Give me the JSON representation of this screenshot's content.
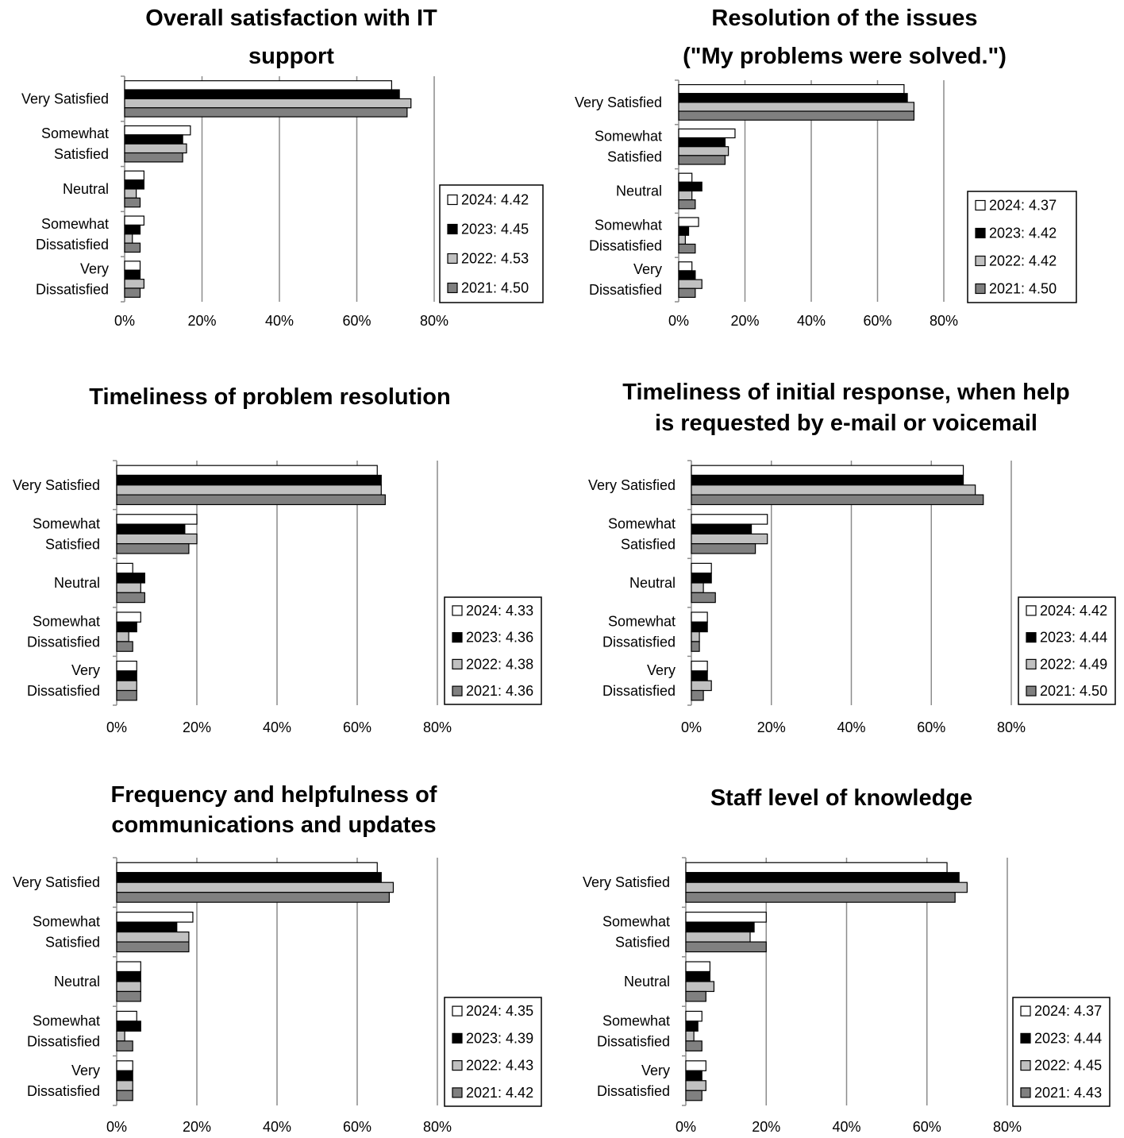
{
  "legend_years": [
    "2024",
    "2023",
    "2022",
    "2021"
  ],
  "series_colors": [
    "#ffffff",
    "#000000",
    "#c0c0c0",
    "#808080"
  ],
  "chart_data": [
    {
      "type": "bar",
      "orientation": "horizontal",
      "title": [
        "Overall satisfaction with IT",
        "support"
      ],
      "categories": [
        [
          "Very Satisfied"
        ],
        [
          "Somewhat",
          "Satisfied"
        ],
        [
          "Neutral"
        ],
        [
          "Somewhat",
          "Dissatisfied"
        ],
        [
          "Very",
          "Dissatisfied"
        ]
      ],
      "series": [
        {
          "name": "2024: 4.42",
          "values": [
            69,
            17,
            5,
            5,
            4
          ]
        },
        {
          "name": "2023: 4.45",
          "values": [
            71,
            15,
            5,
            4,
            4
          ]
        },
        {
          "name": "2022: 4.53",
          "values": [
            74,
            16,
            3,
            2,
            5
          ]
        },
        {
          "name": "2021: 4.50",
          "values": [
            73,
            15,
            4,
            4,
            4
          ]
        }
      ],
      "xlim": [
        0,
        80
      ],
      "xticks": [
        "0%",
        "20%",
        "40%",
        "60%",
        "80%"
      ],
      "legend": "right"
    },
    {
      "type": "bar",
      "orientation": "horizontal",
      "title": [
        "Resolution of the issues",
        "(\"My problems were solved.\")"
      ],
      "categories": [
        [
          "Very Satisfied"
        ],
        [
          "Somewhat",
          "Satisfied"
        ],
        [
          "Neutral"
        ],
        [
          "Somewhat",
          "Dissatisfied"
        ],
        [
          "Very",
          "Dissatisfied"
        ]
      ],
      "series": [
        {
          "name": "2024: 4.37",
          "values": [
            68,
            17,
            4,
            6,
            4
          ]
        },
        {
          "name": "2023: 4.42",
          "values": [
            69,
            14,
            7,
            3,
            5
          ]
        },
        {
          "name": "2022: 4.42",
          "values": [
            71,
            15,
            4,
            2,
            7
          ]
        },
        {
          "name": "2021: 4.50",
          "values": [
            71,
            14,
            5,
            5,
            5
          ]
        }
      ],
      "xlim": [
        0,
        80
      ],
      "xticks": [
        "0%",
        "20%",
        "40%",
        "60%",
        "80%"
      ],
      "legend": "right"
    },
    {
      "type": "bar",
      "orientation": "horizontal",
      "title": [
        "Timeliness of problem resolution"
      ],
      "categories": [
        [
          "Very Satisfied"
        ],
        [
          "Somewhat",
          "Satisfied"
        ],
        [
          "Neutral"
        ],
        [
          "Somewhat",
          "Dissatisfied"
        ],
        [
          "Very",
          "Dissatisfied"
        ]
      ],
      "series": [
        {
          "name": "2024: 4.33",
          "values": [
            65,
            20,
            4,
            6,
            5
          ]
        },
        {
          "name": "2023: 4.36",
          "values": [
            66,
            17,
            7,
            5,
            5
          ]
        },
        {
          "name": "2022: 4.38",
          "values": [
            66,
            20,
            6,
            3,
            5
          ]
        },
        {
          "name": "2021: 4.36",
          "values": [
            67,
            18,
            7,
            4,
            5
          ]
        }
      ],
      "xlim": [
        0,
        80
      ],
      "xticks": [
        "0%",
        "20%",
        "40%",
        "60%",
        "80%"
      ],
      "legend": "right"
    },
    {
      "type": "bar",
      "orientation": "horizontal",
      "title": [
        "Timeliness of initial response, when help",
        "is requested by e-mail or voicemail"
      ],
      "categories": [
        [
          "Very Satisfied"
        ],
        [
          "Somewhat",
          "Satisfied"
        ],
        [
          "Neutral"
        ],
        [
          "Somewhat",
          "Dissatisfied"
        ],
        [
          "Very",
          "Dissatisfied"
        ]
      ],
      "series": [
        {
          "name": "2024: 4.42",
          "values": [
            68,
            19,
            5,
            4,
            4
          ]
        },
        {
          "name": "2023: 4.44",
          "values": [
            68,
            15,
            5,
            4,
            4
          ]
        },
        {
          "name": "2022: 4.49",
          "values": [
            71,
            19,
            3,
            2,
            5
          ]
        },
        {
          "name": "2021: 4.50",
          "values": [
            73,
            16,
            6,
            2,
            3
          ]
        }
      ],
      "xlim": [
        0,
        80
      ],
      "xticks": [
        "0%",
        "20%",
        "40%",
        "60%",
        "80%"
      ],
      "legend": "right"
    },
    {
      "type": "bar",
      "orientation": "horizontal",
      "title": [
        "Frequency and helpfulness of",
        "communications and updates"
      ],
      "categories": [
        [
          "Very Satisfied"
        ],
        [
          "Somewhat",
          "Satisfied"
        ],
        [
          "Neutral"
        ],
        [
          "Somewhat",
          "Dissatisfied"
        ],
        [
          "Very",
          "Dissatisfied"
        ]
      ],
      "series": [
        {
          "name": "2024: 4.35",
          "values": [
            65,
            19,
            6,
            5,
            4
          ]
        },
        {
          "name": "2023: 4.39",
          "values": [
            66,
            15,
            6,
            6,
            4
          ]
        },
        {
          "name": "2022: 4.43",
          "values": [
            69,
            18,
            6,
            2,
            4
          ]
        },
        {
          "name": "2021: 4.42",
          "values": [
            68,
            18,
            6,
            4,
            4
          ]
        }
      ],
      "xlim": [
        0,
        80
      ],
      "xticks": [
        "0%",
        "20%",
        "40%",
        "60%",
        "80%"
      ],
      "legend": "right"
    },
    {
      "type": "bar",
      "orientation": "horizontal",
      "title": [
        "Staff level of knowledge"
      ],
      "categories": [
        [
          "Very Satisfied"
        ],
        [
          "Somewhat",
          "Satisfied"
        ],
        [
          "Neutral"
        ],
        [
          "Somewhat",
          "Dissatisfied"
        ],
        [
          "Very",
          "Dissatisfied"
        ]
      ],
      "series": [
        {
          "name": "2024: 4.37",
          "values": [
            65,
            20,
            6,
            4,
            5
          ]
        },
        {
          "name": "2023: 4.44",
          "values": [
            68,
            17,
            6,
            3,
            4
          ]
        },
        {
          "name": "2022: 4.45",
          "values": [
            70,
            16,
            7,
            2,
            5
          ]
        },
        {
          "name": "2021: 4.43",
          "values": [
            67,
            20,
            5,
            4,
            4
          ]
        }
      ],
      "xlim": [
        0,
        80
      ],
      "xticks": [
        "0%",
        "20%",
        "40%",
        "60%",
        "80%"
      ],
      "legend": "right"
    }
  ]
}
